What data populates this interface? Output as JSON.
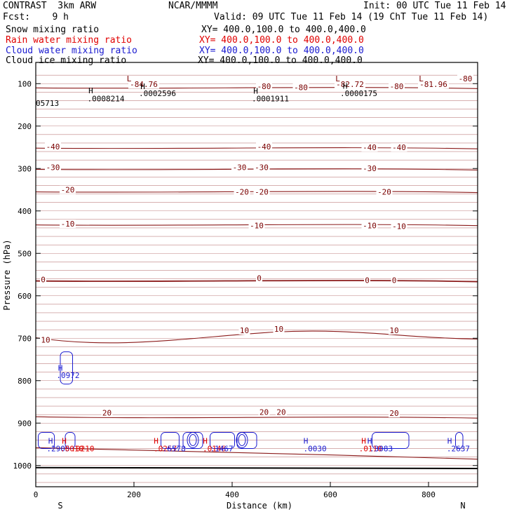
{
  "header": {
    "model": "CONTRAST  3km ARW",
    "org": "NCAR/MMMM",
    "init": "Init: 00 UTC Tue 11 Feb 14",
    "fcst": "Fcst:    9 h",
    "valid": "Valid: 09 UTC Tue 11 Feb 14 (19 ChT Tue 11 Feb 14)"
  },
  "legend": [
    {
      "label": "Snow mixing ratio",
      "xy": "XY= 400.0,100.0 to 400.0,400.0",
      "color": "#000000"
    },
    {
      "label": "Rain water mixing ratio",
      "xy": "XY= 400.0,100.0 to 400.0,400.0",
      "color": "#e00000"
    },
    {
      "label": "Cloud water mixing ratio",
      "xy": "XY= 400.0,100.0 to 400.0,400.0",
      "color": "#1a1ad0"
    },
    {
      "label": "Cloud ice mixing ratio",
      "xy": "XY= 400.0,100.0 to 400.0,400.0",
      "color": "#000000"
    }
  ],
  "chart_data": {
    "type": "contour cross-section",
    "xlabel": "Distance (km)",
    "ylabel": "Pressure (hPa)",
    "xlim": [
      0,
      900
    ],
    "ylim": [
      1050,
      50
    ],
    "x_ticks": [
      0,
      200,
      400,
      600,
      800
    ],
    "y_ticks": [
      100,
      200,
      300,
      400,
      500,
      600,
      700,
      800,
      900,
      1000
    ],
    "end_labels": {
      "left": "S",
      "right": "N"
    },
    "temperature_contours": [
      {
        "value": -80,
        "pressure": 110
      },
      {
        "value": -40,
        "pressure": 252
      },
      {
        "value": -30,
        "pressure": 302
      },
      {
        "value": -20,
        "pressure": 355
      },
      {
        "value": -10,
        "pressure": 433
      },
      {
        "value": 0,
        "pressure": 565
      },
      {
        "value": 10,
        "pressure": 712
      },
      {
        "value": 20,
        "pressure": 885
      }
    ],
    "contour_labels": [
      {
        "text": "-84.76",
        "x": 220,
        "p": 103
      },
      {
        "text": "-80",
        "x": 465,
        "p": 108
      },
      {
        "text": "-80",
        "x": 540,
        "p": 110
      },
      {
        "text": "-82.72",
        "x": 640,
        "p": 103
      },
      {
        "text": "-80",
        "x": 735,
        "p": 108
      },
      {
        "text": "-81.96",
        "x": 810,
        "p": 103
      },
      {
        "text": "-80",
        "x": 875,
        "p": 90
      },
      {
        "text": "-40",
        "x": 35,
        "p": 250
      },
      {
        "text": "-40",
        "x": 465,
        "p": 250
      },
      {
        "text": "-40",
        "x": 680,
        "p": 252
      },
      {
        "text": "-40",
        "x": 740,
        "p": 252
      },
      {
        "text": "-30",
        "x": 35,
        "p": 299
      },
      {
        "text": "-30",
        "x": 415,
        "p": 299
      },
      {
        "text": "-30",
        "x": 460,
        "p": 299
      },
      {
        "text": "-30",
        "x": 680,
        "p": 301
      },
      {
        "text": "-20",
        "x": 65,
        "p": 352
      },
      {
        "text": "-20",
        "x": 420,
        "p": 357
      },
      {
        "text": "-20",
        "x": 460,
        "p": 357
      },
      {
        "text": "-20",
        "x": 710,
        "p": 357
      },
      {
        "text": "-10",
        "x": 65,
        "p": 432
      },
      {
        "text": "-10",
        "x": 450,
        "p": 436
      },
      {
        "text": "-10",
        "x": 680,
        "p": 436
      },
      {
        "text": "-10",
        "x": 740,
        "p": 438
      },
      {
        "text": "0",
        "x": 15,
        "p": 563
      },
      {
        "text": "0",
        "x": 455,
        "p": 560
      },
      {
        "text": "0",
        "x": 675,
        "p": 565
      },
      {
        "text": "0",
        "x": 730,
        "p": 565
      },
      {
        "text": "10",
        "x": 20,
        "p": 705
      },
      {
        "text": "10",
        "x": 425,
        "p": 683
      },
      {
        "text": "10",
        "x": 495,
        "p": 680
      },
      {
        "text": "10",
        "x": 730,
        "p": 683
      },
      {
        "text": "20",
        "x": 145,
        "p": 877
      },
      {
        "text": "20",
        "x": 465,
        "p": 876
      },
      {
        "text": "20",
        "x": 500,
        "p": 876
      },
      {
        "text": "20",
        "x": 730,
        "p": 878
      }
    ],
    "extrema": [
      {
        "mark": "L",
        "x": 190,
        "p": 88,
        "color": "#7a0000"
      },
      {
        "mark": "L",
        "x": 615,
        "p": 88,
        "color": "#7a0000"
      },
      {
        "mark": "L",
        "x": 785,
        "p": 88,
        "color": "#7a0000"
      },
      {
        "mark": "H",
        "x": 112,
        "p": 116,
        "color": "#000000"
      },
      {
        "mark": "H",
        "x": 218,
        "p": 106,
        "color": "#000000"
      },
      {
        "mark": "H",
        "x": 448,
        "p": 117,
        "color": "#000000"
      },
      {
        "mark": "H",
        "x": 630,
        "p": 105,
        "color": "#000000"
      },
      {
        "mark": "H",
        "x": 50,
        "p": 770,
        "color": "#1a1ad0"
      },
      {
        "mark": "H",
        "x": 30,
        "p": 942,
        "color": "#1a1ad0"
      },
      {
        "mark": "H",
        "x": 58,
        "p": 942,
        "color": "#e00000"
      },
      {
        "mark": "H",
        "x": 245,
        "p": 942,
        "color": "#e00000"
      },
      {
        "mark": "H",
        "x": 345,
        "p": 942,
        "color": "#e00000"
      },
      {
        "mark": "H",
        "x": 550,
        "p": 942,
        "color": "#1a1ad0"
      },
      {
        "mark": "H",
        "x": 668,
        "p": 942,
        "color": "#e00000"
      },
      {
        "mark": "H",
        "x": 680,
        "p": 942,
        "color": "#1a1ad0"
      },
      {
        "mark": "H",
        "x": 843,
        "p": 942,
        "color": "#1a1ad0"
      }
    ],
    "extrema_values": [
      {
        "text": ".0008214",
        "x": 105,
        "p": 135,
        "color": "#000000"
      },
      {
        "text": ".0002596",
        "x": 210,
        "p": 123,
        "color": "#000000"
      },
      {
        "text": ".0001911",
        "x": 440,
        "p": 135,
        "color": "#000000"
      },
      {
        "text": ".0000175",
        "x": 620,
        "p": 123,
        "color": "#000000"
      },
      {
        "text": "05713",
        "x": 0,
        "p": 146,
        "color": "#000000"
      },
      {
        "text": ".0972",
        "x": 42,
        "p": 787,
        "color": "#1a1ad0"
      },
      {
        "text": ".2905",
        "x": 22,
        "p": 960,
        "color": "#1a1ad0"
      },
      {
        "text": ".0010",
        "x": 50,
        "p": 960,
        "color": "#e00000"
      },
      {
        "text": ".0210",
        "x": 72,
        "p": 960,
        "color": "#e00000"
      },
      {
        "text": ".0257",
        "x": 240,
        "p": 960,
        "color": "#e00000"
      },
      {
        "text": ".6578",
        "x": 258,
        "p": 960,
        "color": "#1a1ad0"
      },
      {
        "text": ".0146",
        "x": 340,
        "p": 960,
        "color": "#e00000"
      },
      {
        "text": ".1467",
        "x": 355,
        "p": 960,
        "color": "#1a1ad0"
      },
      {
        "text": ".0030",
        "x": 545,
        "p": 960,
        "color": "#1a1ad0"
      },
      {
        "text": ".0110",
        "x": 658,
        "p": 960,
        "color": "#e00000"
      },
      {
        "text": ".3083",
        "x": 680,
        "p": 960,
        "color": "#1a1ad0"
      },
      {
        "text": ".2637",
        "x": 837,
        "p": 960,
        "color": "#1a1ad0"
      }
    ]
  }
}
